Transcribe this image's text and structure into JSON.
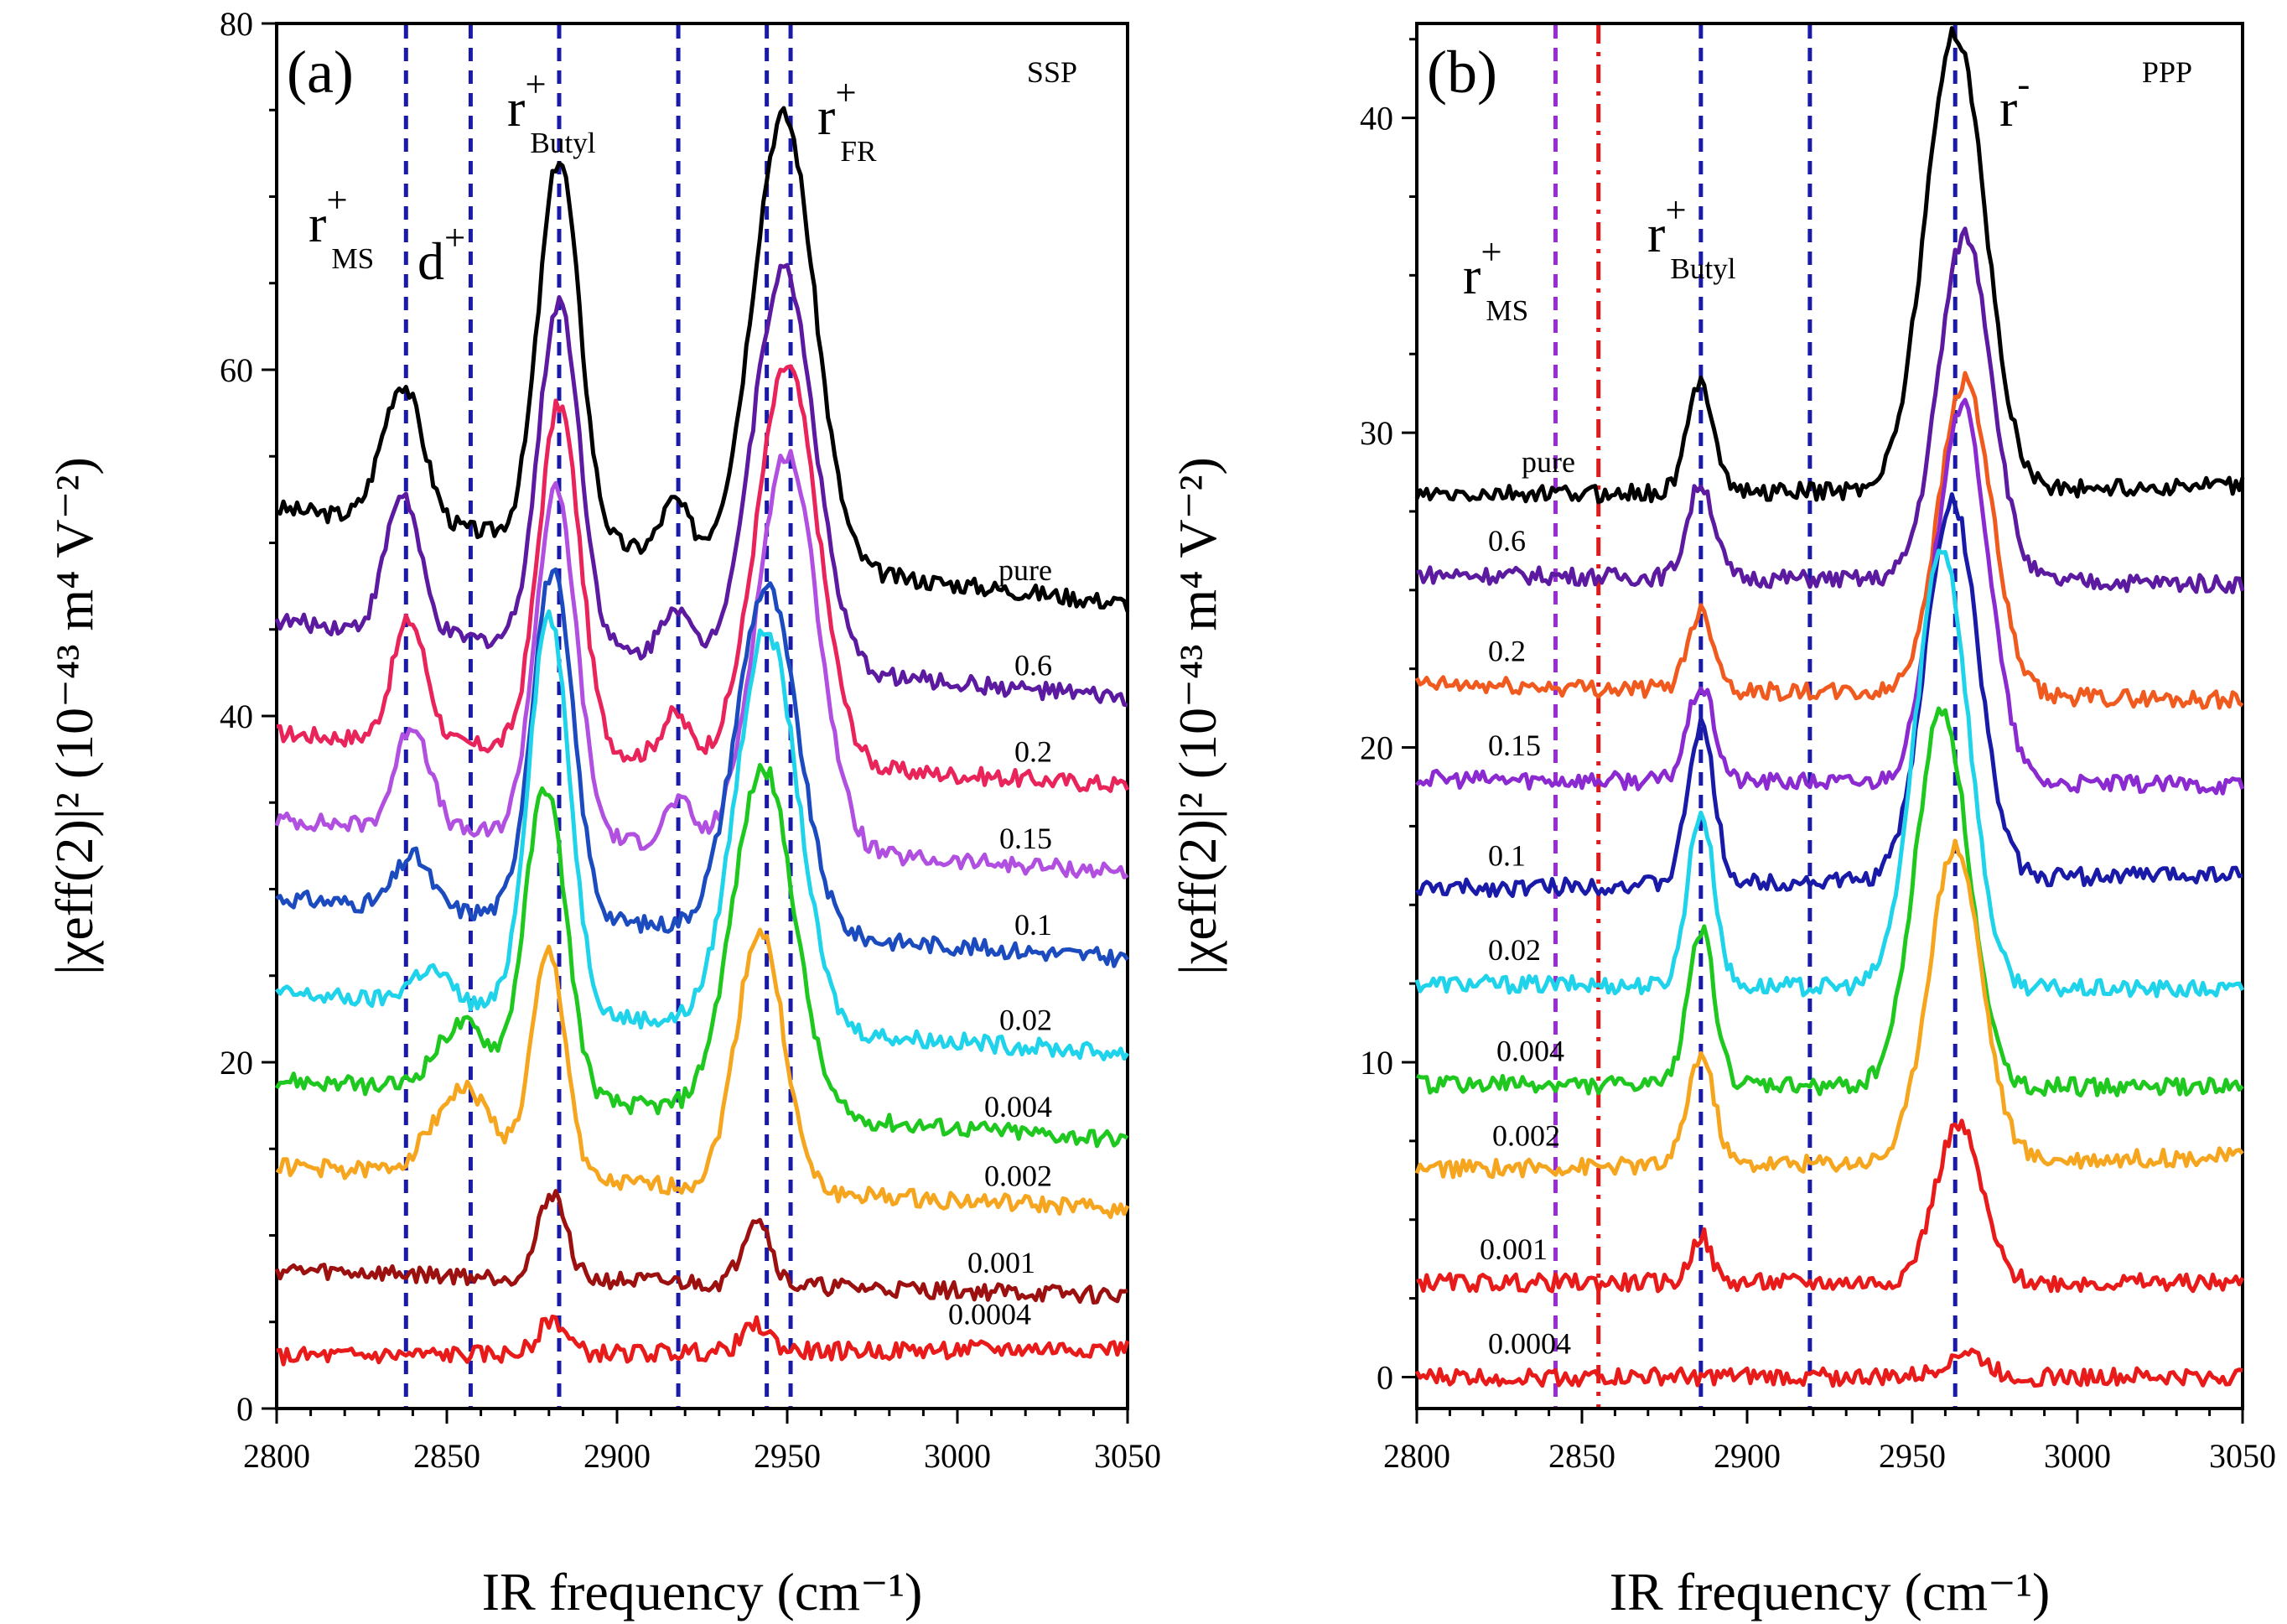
{
  "chart_data": [
    {
      "panel": "(a)",
      "type": "line",
      "polarization": "SSP",
      "xlabel": "IR frequency (cm⁻¹)",
      "ylabel": "|χeff(2)|² (10⁻⁴³ m⁴ V⁻²)",
      "xlim": [
        2800,
        3050
      ],
      "ylim": [
        0,
        80
      ],
      "xticks": [
        2800,
        2850,
        2900,
        2950,
        3000,
        3050
      ],
      "yticks": [
        0,
        20,
        40,
        60,
        80
      ],
      "annotations": [
        {
          "base": "r",
          "sup": "+",
          "sub": "MS"
        },
        {
          "base": "d",
          "sup": "+",
          "sub": ""
        },
        {
          "base": "r",
          "sup": "+",
          "sub": "Butyl"
        },
        {
          "base": "r",
          "sup": "+",
          "sub": "FR"
        }
      ],
      "reference_lines": {
        "style": "dashed",
        "color": "#1a1aa8",
        "x": [
          2838,
          2857,
          2883,
          2918,
          2944,
          2951
        ]
      },
      "series": [
        {
          "name": "pure",
          "color": "#000000",
          "baseline": 52,
          "end": 46.5,
          "bumps": [
            [
              2837,
              8,
              6
            ],
            [
              2883,
              22,
              6
            ],
            [
              2917,
              3,
              4
            ],
            [
              2949,
              26,
              9
            ]
          ]
        },
        {
          "name": "0.6",
          "color": "#5b1aa0",
          "baseline": 45.5,
          "end": 41,
          "bumps": [
            [
              2837,
              8,
              5
            ],
            [
              2883,
              20,
              6
            ],
            [
              2917,
              3,
              4
            ],
            [
              2949,
              23,
              9
            ]
          ]
        },
        {
          "name": "0.2",
          "color": "#e8245a",
          "baseline": 39,
          "end": 36,
          "bumps": [
            [
              2839,
              7,
              5
            ],
            [
              2883,
              20,
              6
            ],
            [
              2917,
              2.5,
              4
            ],
            [
              2950,
              23,
              9
            ]
          ]
        },
        {
          "name": "0.15",
          "color": "#b04fe0",
          "baseline": 34,
          "end": 31,
          "bumps": [
            [
              2840,
              6,
              5
            ],
            [
              2882,
              20,
              6
            ],
            [
              2918,
              2.5,
              4
            ],
            [
              2950,
              23,
              9
            ]
          ]
        },
        {
          "name": "0.1",
          "color": "#1b4bbf",
          "baseline": 29.5,
          "end": 26,
          "bumps": [
            [
              2840,
              3,
              5
            ],
            [
              2881,
              20,
              6
            ],
            [
              2944,
              20,
              9
            ]
          ]
        },
        {
          "name": "0.02",
          "color": "#1ed3ea",
          "baseline": 24,
          "end": 20.5,
          "bumps": [
            [
              2845,
              2,
              6
            ],
            [
              2880,
              23,
              6
            ],
            [
              2944,
              23,
              9
            ]
          ]
        },
        {
          "name": "0.004",
          "color": "#1ec81e",
          "baseline": 19,
          "end": 15.5,
          "bumps": [
            [
              2855,
              4,
              8
            ],
            [
              2879,
              18,
              6
            ],
            [
              2943,
              20,
              9
            ]
          ]
        },
        {
          "name": "0.002",
          "color": "#f5a51e",
          "baseline": 14,
          "end": 11.5,
          "bumps": [
            [
              2855,
              5,
              9
            ],
            [
              2880,
              13,
              5
            ],
            [
              2942,
              15,
              7
            ]
          ]
        },
        {
          "name": "0.001",
          "color": "#9c1010",
          "baseline": 8,
          "end": 6.5,
          "bumps": [
            [
              2881,
              5,
              4
            ],
            [
              2941,
              4,
              4
            ]
          ]
        },
        {
          "name": "0.0004",
          "color": "#e81a1a",
          "baseline": 3,
          "end": 3.5,
          "bumps": [
            [
              2881,
              2,
              4
            ],
            [
              2941,
              1.5,
              4
            ]
          ]
        }
      ]
    },
    {
      "panel": "(b)",
      "type": "line",
      "polarization": "PPP",
      "xlabel": "IR frequency (cm⁻¹)",
      "ylabel": "|χeff(2)|² (10⁻⁴³ m⁴ V⁻²)",
      "xlim": [
        2800,
        3050
      ],
      "ylim": [
        -1,
        43
      ],
      "xticks": [
        2800,
        2850,
        2900,
        2950,
        3000,
        3050
      ],
      "yticks": [
        0,
        10,
        20,
        30,
        40
      ],
      "annotations": [
        {
          "base": "r",
          "sup": "+",
          "sub": "MS"
        },
        {
          "base": "r",
          "sup": "+",
          "sub": "Butyl"
        },
        {
          "base": "r",
          "sup": "-",
          "sub": ""
        }
      ],
      "reference_lines": [
        {
          "style": "dashed",
          "color": "#9a2ad6",
          "x": 2842
        },
        {
          "style": "dashdot",
          "color": "#e01a1a",
          "x": 2855
        },
        {
          "style": "dashed",
          "color": "#1a1aa8",
          "x": 2886
        },
        {
          "style": "dashed",
          "color": "#1a1aa8",
          "x": 2919
        },
        {
          "style": "dashed",
          "color": "#1a1aa8",
          "x": 2963
        }
      ],
      "series": [
        {
          "name": "pure",
          "color": "#000000",
          "baseline": 28,
          "end": 28.3,
          "bumps": [
            [
              2886,
              3.5,
              4
            ],
            [
              2963,
              14.5,
              9
            ]
          ]
        },
        {
          "name": "0.6",
          "color": "#5b1aa0",
          "baseline": 25.5,
          "end": 25.2,
          "bumps": [
            [
              2886,
              3,
              4
            ],
            [
              2966,
              11,
              8
            ]
          ]
        },
        {
          "name": "0.2",
          "color": "#f05a1e",
          "baseline": 22,
          "end": 21.5,
          "bumps": [
            [
              2886,
              2.5,
              4
            ],
            [
              2966,
              10,
              8
            ]
          ]
        },
        {
          "name": "0.15",
          "color": "#8a2ad0",
          "baseline": 19,
          "end": 18.8,
          "bumps": [
            [
              2886,
              3,
              4
            ],
            [
              2965,
              12,
              8
            ]
          ]
        },
        {
          "name": "0.1",
          "color": "#1a1aa8",
          "baseline": 15.5,
          "end": 16,
          "bumps": [
            [
              2886,
              5,
              4
            ],
            [
              2962,
              12,
              8
            ]
          ]
        },
        {
          "name": "0.02",
          "color": "#1ed3ea",
          "baseline": 12.5,
          "end": 12.3,
          "bumps": [
            [
              2886,
              5.5,
              4
            ],
            [
              2959,
              14,
              8
            ]
          ]
        },
        {
          "name": "0.004",
          "color": "#1ec81e",
          "baseline": 9.3,
          "end": 9.2,
          "bumps": [
            [
              2886,
              5,
              4
            ],
            [
              2959,
              12,
              8
            ]
          ]
        },
        {
          "name": "0.002",
          "color": "#f5a51e",
          "baseline": 6.6,
          "end": 7,
          "bumps": [
            [
              2886,
              3.5,
              4
            ],
            [
              2963,
              10,
              8
            ]
          ]
        },
        {
          "name": "0.001",
          "color": "#e81a1a",
          "baseline": 3,
          "end": 3,
          "bumps": [
            [
              2886,
              1.5,
              3
            ],
            [
              2964,
              5,
              7
            ]
          ]
        },
        {
          "name": "0.0004",
          "color": "#e81a1a",
          "baseline": 0,
          "end": 0,
          "bumps": [
            [
              2966,
              0.8,
              6
            ]
          ]
        }
      ]
    }
  ]
}
